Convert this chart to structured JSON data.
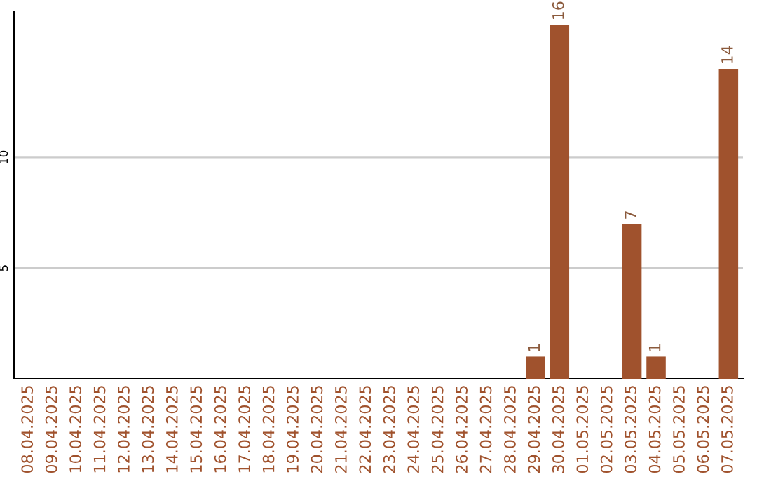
{
  "chart_data": {
    "type": "bar",
    "categories": [
      "08.04.2025",
      "09.04.2025",
      "10.04.2025",
      "11.04.2025",
      "12.04.2025",
      "13.04.2025",
      "14.04.2025",
      "15.04.2025",
      "16.04.2025",
      "17.04.2025",
      "18.04.2025",
      "19.04.2025",
      "20.04.2025",
      "21.04.2025",
      "22.04.2025",
      "23.04.2025",
      "24.04.2025",
      "25.04.2025",
      "26.04.2025",
      "27.04.2025",
      "28.04.2025",
      "29.04.2025",
      "30.04.2025",
      "01.05.2025",
      "02.05.2025",
      "03.05.2025",
      "04.05.2025",
      "05.05.2025",
      "06.05.2025",
      "07.05.2025"
    ],
    "values": [
      null,
      null,
      null,
      null,
      null,
      null,
      null,
      null,
      null,
      null,
      null,
      null,
      null,
      null,
      null,
      null,
      null,
      null,
      null,
      null,
      null,
      1,
      16,
      null,
      null,
      7,
      1,
      null,
      null,
      14
    ],
    "color": "#a0522d",
    "ylim": [
      0,
      16.6
    ],
    "yticks": [
      5,
      10
    ],
    "grid": "y",
    "data_labels": true
  }
}
